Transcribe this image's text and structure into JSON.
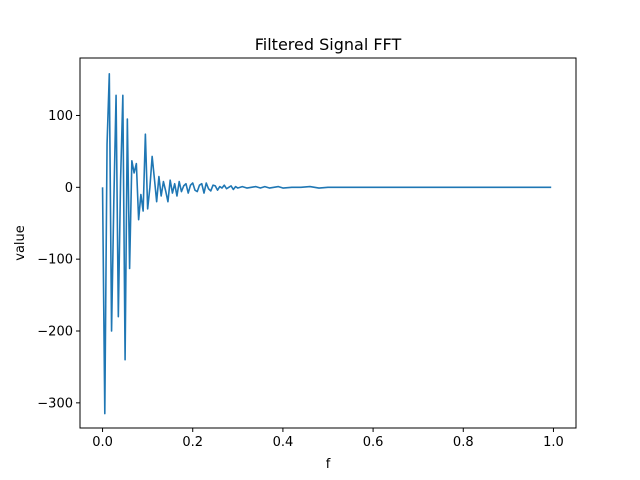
{
  "chart_data": {
    "type": "line",
    "title": "Filtered Signal FFT",
    "xlabel": "f",
    "ylabel": "value",
    "xlim": [
      -0.05,
      1.05
    ],
    "ylim": [
      -335,
      180
    ],
    "xticks": [
      0.0,
      0.2,
      0.4,
      0.6,
      0.8,
      1.0
    ],
    "xtick_labels": [
      "0.0",
      "0.2",
      "0.4",
      "0.6",
      "0.8",
      "1.0"
    ],
    "yticks": [
      -300,
      -200,
      -100,
      0,
      100
    ],
    "ytick_labels": [
      "−300",
      "−200",
      "−100",
      "0",
      "100"
    ],
    "grid": false,
    "series": [
      {
        "color": "#1f77b4",
        "x": [
          0.0,
          0.005,
          0.01,
          0.015,
          0.02,
          0.025,
          0.03,
          0.035,
          0.04,
          0.045,
          0.05,
          0.055,
          0.06,
          0.065,
          0.07,
          0.075,
          0.08,
          0.085,
          0.09,
          0.095,
          0.1,
          0.105,
          0.11,
          0.115,
          0.12,
          0.125,
          0.13,
          0.135,
          0.14,
          0.145,
          0.15,
          0.155,
          0.16,
          0.165,
          0.17,
          0.175,
          0.18,
          0.185,
          0.19,
          0.195,
          0.2,
          0.205,
          0.21,
          0.215,
          0.22,
          0.225,
          0.23,
          0.235,
          0.24,
          0.245,
          0.25,
          0.255,
          0.26,
          0.265,
          0.27,
          0.275,
          0.28,
          0.285,
          0.29,
          0.295,
          0.3,
          0.31,
          0.32,
          0.33,
          0.34,
          0.35,
          0.36,
          0.37,
          0.38,
          0.39,
          0.4,
          0.42,
          0.44,
          0.46,
          0.48,
          0.5,
          0.55,
          0.6,
          0.65,
          0.7,
          0.75,
          0.8,
          0.85,
          0.9,
          0.95,
          0.995
        ],
        "y": [
          0,
          -315,
          60,
          158,
          -200,
          -20,
          128,
          -180,
          10,
          128,
          -240,
          95,
          -113,
          37,
          20,
          33,
          -45,
          -10,
          -33,
          74,
          -30,
          0,
          43,
          12,
          -20,
          15,
          -12,
          8,
          -5,
          -20,
          10,
          -8,
          5,
          -12,
          8,
          -6,
          2,
          5,
          -8,
          3,
          6,
          -4,
          -6,
          3,
          5,
          -8,
          6,
          -2,
          -5,
          3,
          2,
          -4,
          1,
          -1,
          3,
          -2,
          0,
          2,
          -3,
          1,
          -1,
          1,
          -1,
          0,
          1,
          -1,
          1,
          -1,
          0,
          1,
          -1,
          0,
          0,
          1,
          -1,
          0,
          0,
          0,
          0,
          0,
          0,
          0,
          0,
          0,
          0,
          0
        ]
      }
    ]
  }
}
